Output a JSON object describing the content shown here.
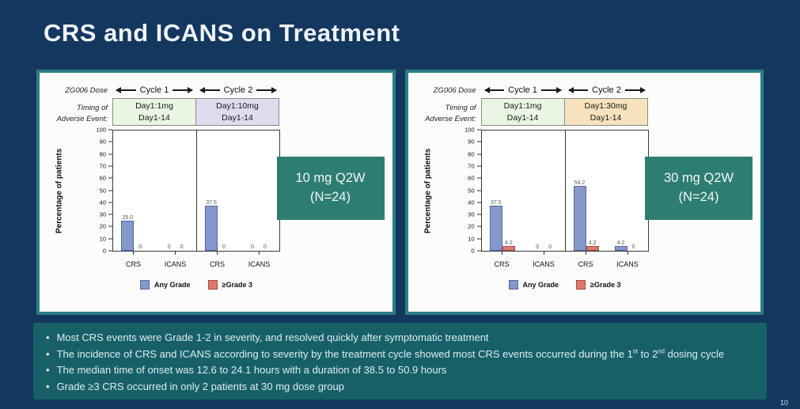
{
  "slide": {
    "title": "CRS and ICANS on Treatment",
    "page_number": "10"
  },
  "panels": [
    {
      "dose_row_label": "ZG006 Dose",
      "timing_label": [
        "Timing of",
        "Adverse Event:"
      ],
      "dose_summary": [
        "10 mg Q2W",
        "(N=24)"
      ]
    },
    {
      "dose_row_label": "ZG006 Dose",
      "timing_label": [
        "Timing of",
        "Adverse Event:"
      ],
      "dose_summary": [
        "30 mg Q2W",
        "(N=24)"
      ]
    }
  ],
  "legend": [
    {
      "label": "Any Grade",
      "color": "#8498cb",
      "border": "#56669e"
    },
    {
      "label": "≥Grade 3",
      "color": "#dd7a6e",
      "border": "#a84b42"
    }
  ],
  "chart_data": [
    {
      "type": "bar",
      "title": "10 mg Q2W (N=24)",
      "ylabel": "Percentage of patients",
      "ylim": [
        0,
        100
      ],
      "ytick_step": 10,
      "series": [
        "Any Grade",
        "≥Grade 3"
      ],
      "series_colors": [
        "#8498cb",
        "#dd7a6e"
      ],
      "series_borders": [
        "#56669e",
        "#a84b42"
      ],
      "legend_position": "bottom",
      "grid": false,
      "cycles": [
        {
          "name": "Cycle 1",
          "dose_box": {
            "line1": "Day1:1mg",
            "line2": "Day1-14",
            "color": "#e8f6e3"
          },
          "groups": [
            {
              "category": "CRS",
              "values": [
                25.0,
                0
              ],
              "labels": [
                "25.0",
                "0"
              ]
            },
            {
              "category": "ICANS",
              "values": [
                0,
                0
              ],
              "labels": [
                "0",
                "0"
              ]
            }
          ]
        },
        {
          "name": "Cycle 2",
          "dose_box": {
            "line1": "Day1:10mg",
            "line2": "Day1-14",
            "color": "#dedcee"
          },
          "groups": [
            {
              "category": "CRS",
              "values": [
                37.5,
                0
              ],
              "labels": [
                "37.5",
                "0"
              ]
            },
            {
              "category": "ICANS",
              "values": [
                0,
                0
              ],
              "labels": [
                "0",
                "0"
              ]
            }
          ]
        }
      ]
    },
    {
      "type": "bar",
      "title": "30 mg Q2W (N=24)",
      "ylabel": "Percentage of patients",
      "ylim": [
        0,
        100
      ],
      "ytick_step": 10,
      "series": [
        "Any Grade",
        "≥Grade 3"
      ],
      "series_colors": [
        "#8498cb",
        "#dd7a6e"
      ],
      "series_borders": [
        "#56669e",
        "#a84b42"
      ],
      "legend_position": "bottom",
      "grid": false,
      "cycles": [
        {
          "name": "Cycle 1",
          "dose_box": {
            "line1": "Day1:1mg",
            "line2": "Day1-14",
            "color": "#e8f6e3"
          },
          "groups": [
            {
              "category": "CRS",
              "values": [
                37.5,
                4.2
              ],
              "labels": [
                "37.5",
                "4.2"
              ]
            },
            {
              "category": "ICANS",
              "values": [
                0,
                0
              ],
              "labels": [
                "0",
                "0"
              ]
            }
          ]
        },
        {
          "name": "Cycle 2",
          "dose_box": {
            "line1": "Day1:30mg",
            "line2": "Day1-14",
            "color": "#f6e3bd"
          },
          "groups": [
            {
              "category": "CRS",
              "values": [
                54.2,
                4.2
              ],
              "labels": [
                "54.2",
                "4.2"
              ]
            },
            {
              "category": "ICANS",
              "values": [
                4.2,
                0
              ],
              "labels": [
                "4.2",
                "0"
              ]
            }
          ]
        }
      ]
    }
  ],
  "bullets": [
    [
      {
        "t": "Most CRS events were Grade 1-2 in severity, and resolved quickly after symptomatic treatment"
      }
    ],
    [
      {
        "t": "The incidence of CRS and ICANS according to severity by the treatment cycle showed most CRS events occurred during the 1"
      },
      {
        "t": "st",
        "sup": true
      },
      {
        "t": " to 2"
      },
      {
        "t": "nd",
        "sup": true
      },
      {
        "t": " dosing cycle"
      }
    ],
    [
      {
        "t": "The median time of onset was 12.6 to 24.1 hours with a duration of 38.5 to 50.9 hours"
      }
    ],
    [
      {
        "t": "Grade ≥3 CRS occurred in only 2 patients at 30 mg dose group"
      }
    ]
  ]
}
